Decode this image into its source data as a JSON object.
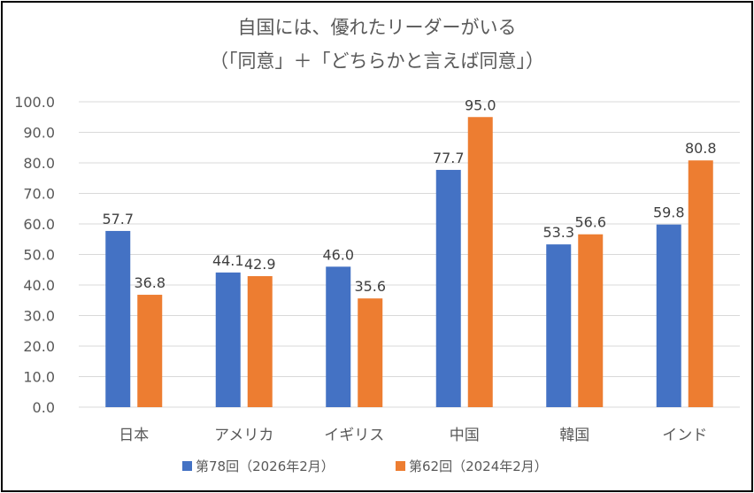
{
  "chart_data": {
    "type": "bar",
    "title_line1": "自国には、優れたリーダーがいる",
    "title_line2": "（「同意」＋「どちらかと言えば同意」）",
    "categories": [
      "日本",
      "アメリカ",
      "イギリス",
      "中国",
      "韓国",
      "インド"
    ],
    "series": [
      {
        "name": "第78回（2026年2月）",
        "color": "#4472C4",
        "values": [
          57.7,
          44.1,
          46.0,
          77.7,
          53.3,
          59.8
        ]
      },
      {
        "name": "第62回（2024年2月）",
        "color": "#ED7D31",
        "values": [
          36.8,
          42.9,
          35.6,
          95.0,
          56.6,
          80.8
        ]
      }
    ],
    "ylim": [
      0,
      100
    ],
    "y_ticks": [
      "0.0",
      "10.0",
      "20.0",
      "30.0",
      "40.0",
      "50.0",
      "60.0",
      "70.0",
      "80.0",
      "90.0",
      "100.0"
    ],
    "gridlines": true,
    "legend_position": "bottom",
    "xlabel": "",
    "ylabel": ""
  }
}
